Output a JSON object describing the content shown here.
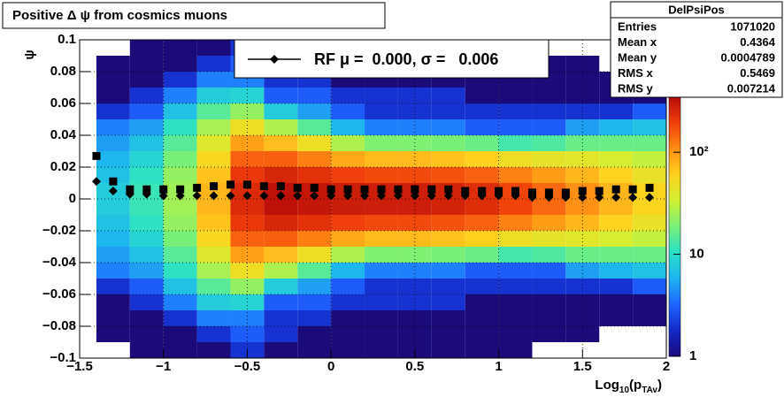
{
  "chart_data": {
    "type": "heatmap",
    "title": "Positive Δ ψ from cosmics muons",
    "y_label": "ψ",
    "x_label": [
      "Log",
      "10",
      "(p",
      "TAv",
      ")"
    ],
    "xlim": [
      -1.5,
      2
    ],
    "ylim": [
      -0.1,
      0.1
    ],
    "xticks": [
      {
        "value": -1.5,
        "label": "−1.5"
      },
      {
        "value": -1,
        "label": "−1"
      },
      {
        "value": -0.5,
        "label": "−0.5"
      },
      0,
      0.5,
      1,
      1.5,
      2
    ],
    "yticks": [
      {
        "value": -0.1,
        "label": "−0.1"
      },
      {
        "value": -0.08,
        "label": "−0.08"
      },
      {
        "value": -0.06,
        "label": "−0.06"
      },
      {
        "value": -0.04,
        "label": "−0.04"
      },
      {
        "value": -0.02,
        "label": "−0.02"
      },
      0,
      0.02,
      0.04,
      0.06,
      0.08,
      0.1
    ],
    "grid": true,
    "xbins": [
      -1.4,
      -1.2,
      -1.0,
      -0.8,
      -0.6,
      -0.4,
      -0.2,
      0.0,
      0.2,
      0.4,
      0.6,
      0.8,
      1.0,
      1.2,
      1.4,
      1.6,
      1.8,
      2.0
    ],
    "ybins": [
      -0.1,
      -0.09,
      -0.08,
      -0.07,
      -0.06,
      -0.05,
      -0.04,
      -0.03,
      -0.02,
      -0.01,
      0,
      0.01,
      0.02,
      0.03,
      0.04,
      0.05,
      0.06,
      0.07,
      0.08,
      0.09,
      0.1
    ],
    "z": [
      [
        0,
        1,
        1,
        1,
        2,
        1,
        1,
        1,
        1,
        1,
        1,
        1,
        1,
        0,
        0,
        0,
        0
      ],
      [
        1,
        1,
        1,
        2,
        3,
        2,
        1,
        1,
        1,
        1,
        1,
        1,
        1,
        1,
        1,
        0,
        0
      ],
      [
        1,
        1,
        2,
        4,
        4,
        2,
        2,
        1,
        1,
        1,
        1,
        1,
        1,
        1,
        1,
        1,
        1
      ],
      [
        1,
        2,
        4,
        8,
        9,
        3,
        3,
        2,
        2,
        2,
        2,
        1,
        1,
        1,
        1,
        1,
        1
      ],
      [
        2,
        3,
        7,
        15,
        23,
        8,
        5,
        3,
        2,
        2,
        2,
        2,
        2,
        2,
        2,
        2,
        3
      ],
      [
        4,
        5,
        11,
        26,
        50,
        27,
        15,
        6,
        4,
        4,
        4,
        3,
        3,
        3,
        5,
        6,
        7
      ],
      [
        5,
        7,
        15,
        40,
        94,
        73,
        49,
        27,
        20,
        20,
        19,
        17,
        13,
        14,
        17,
        17,
        17
      ],
      [
        6,
        9,
        19,
        56,
        152,
        154,
        122,
        88,
        75,
        75,
        70,
        62,
        50,
        44,
        42,
        36,
        31
      ],
      [
        7,
        11,
        23,
        70,
        209,
        257,
        226,
        194,
        182,
        182,
        170,
        152,
        121,
        97,
        78,
        60,
        47
      ],
      [
        8,
        12,
        25,
        78,
        245,
        330,
        309,
        286,
        284,
        284,
        265,
        237,
        189,
        143,
        106,
        78,
        58
      ],
      [
        8,
        12,
        25,
        78,
        245,
        330,
        309,
        286,
        284,
        284,
        265,
        237,
        189,
        143,
        106,
        78,
        58
      ],
      [
        7,
        11,
        23,
        70,
        209,
        257,
        226,
        194,
        182,
        182,
        170,
        152,
        121,
        97,
        78,
        60,
        47
      ],
      [
        6,
        9,
        19,
        56,
        152,
        154,
        122,
        88,
        75,
        75,
        70,
        62,
        50,
        44,
        42,
        36,
        31
      ],
      [
        5,
        7,
        15,
        40,
        94,
        73,
        49,
        27,
        20,
        20,
        19,
        17,
        13,
        14,
        17,
        17,
        17
      ],
      [
        4,
        5,
        11,
        26,
        50,
        27,
        15,
        6,
        4,
        4,
        4,
        3,
        3,
        3,
        5,
        6,
        7
      ],
      [
        2,
        3,
        7,
        15,
        23,
        8,
        5,
        3,
        2,
        2,
        2,
        2,
        2,
        2,
        2,
        2,
        3
      ],
      [
        1,
        2,
        4,
        8,
        9,
        3,
        3,
        2,
        2,
        2,
        2,
        1,
        1,
        1,
        1,
        1,
        1
      ],
      [
        1,
        1,
        2,
        4,
        4,
        2,
        2,
        1,
        1,
        1,
        1,
        1,
        1,
        1,
        1,
        1,
        1
      ],
      [
        1,
        1,
        1,
        2,
        3,
        2,
        1,
        1,
        1,
        1,
        1,
        1,
        1,
        1,
        1,
        0,
        0
      ],
      [
        0,
        1,
        1,
        1,
        2,
        1,
        1,
        1,
        1,
        1,
        1,
        1,
        1,
        0,
        0,
        0,
        0
      ]
    ],
    "zlim": [
      1,
      360
    ],
    "zlog": true,
    "zticks": [
      1,
      10,
      {
        "value": 100,
        "label": "10²"
      }
    ],
    "palette": [
      "#1a0a7a",
      "#1428c8",
      "#1e64ff",
      "#1eb4f0",
      "#28e0c8",
      "#78f078",
      "#d2f032",
      "#ffd21e",
      "#ff8c14",
      "#f03c0a",
      "#b40a0a"
    ],
    "x": [
      -1.4,
      -1.3,
      -1.2,
      -1.1,
      -1.0,
      -0.9,
      -0.8,
      -0.7,
      -0.6,
      -0.5,
      -0.4,
      -0.3,
      -0.2,
      -0.1,
      0.0,
      0.1,
      0.2,
      0.3,
      0.4,
      0.5,
      0.6,
      0.7,
      0.8,
      0.9,
      1.0,
      1.1,
      1.2,
      1.3,
      1.4,
      1.5,
      1.6,
      1.7,
      1.8,
      1.9
    ],
    "series": [
      {
        "marker": "square",
        "color": "#000000",
        "values": [
          0.027,
          0.011,
          0.006,
          0.006,
          0.006,
          0.006,
          0.007,
          0.008,
          0.009,
          0.009,
          0.008,
          0.008,
          0.007,
          0.007,
          0.006,
          0.006,
          0.006,
          0.006,
          0.006,
          0.006,
          0.006,
          0.006,
          0.005,
          0.005,
          0.005,
          0.005,
          0.004,
          0.004,
          0.004,
          0.005,
          0.005,
          0.006,
          0.006,
          0.007
        ]
      },
      {
        "name": "RF μ =  0.000, σ =   0.006",
        "marker": "diamond",
        "color": "#000000",
        "values": [
          0.011,
          0.005,
          0.003,
          0.003,
          0.002,
          0.002,
          0.002,
          0.002,
          0.002,
          0.002,
          0.002,
          0.002,
          0.002,
          0.002,
          0.002,
          0.002,
          0.002,
          0.002,
          0.002,
          0.002,
          0.002,
          0.002,
          0.002,
          0.002,
          0.002,
          0.002,
          0.001,
          0.001,
          0.001,
          0.001,
          0.001,
          0.001,
          0.001,
          0.001
        ]
      }
    ],
    "stats": {
      "title": "DelPsiPos",
      "rows": [
        [
          "Entries",
          1071020
        ],
        [
          "Mean x",
          0.4364
        ],
        [
          "Mean y",
          0.0004789
        ],
        [
          "RMS x",
          0.5469
        ],
        [
          "RMS y",
          0.007214
        ]
      ]
    }
  }
}
